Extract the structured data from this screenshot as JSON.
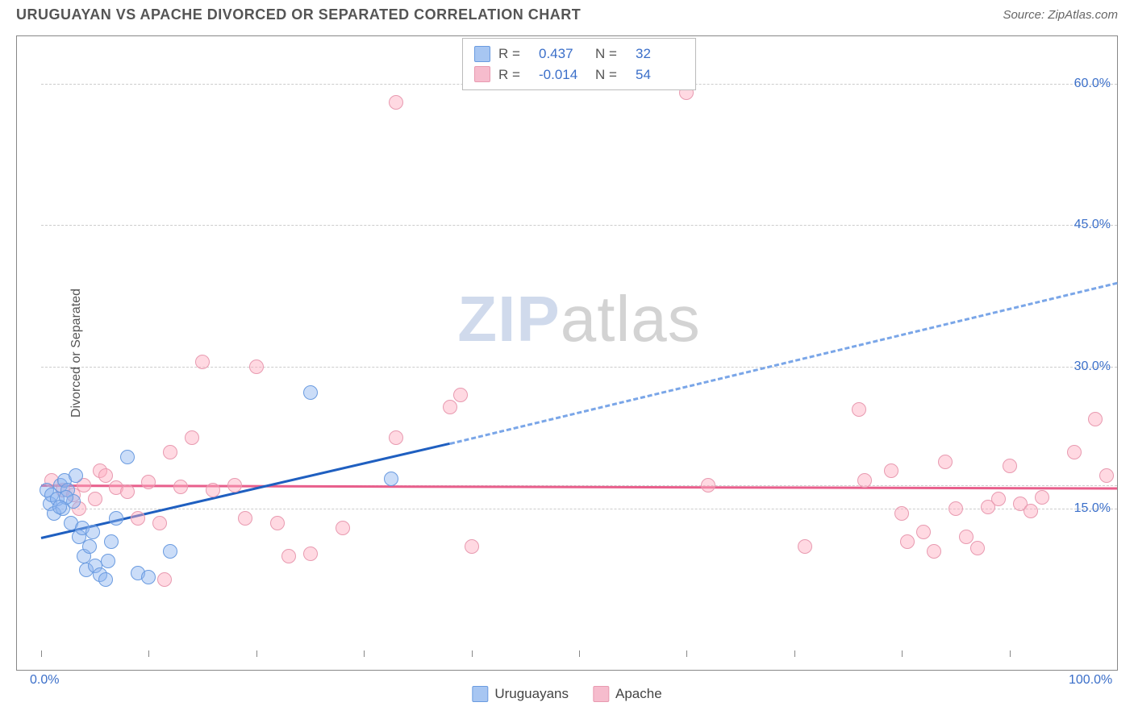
{
  "header": {
    "title": "URUGUAYAN VS APACHE DIVORCED OR SEPARATED CORRELATION CHART",
    "source": "Source: ZipAtlas.com"
  },
  "chart": {
    "type": "scatter",
    "ylabel": "Divorced or Separated",
    "xlim": [
      0,
      100
    ],
    "ylim": [
      0,
      65
    ],
    "x_ticks": [
      0,
      10,
      20,
      30,
      40,
      50,
      60,
      70,
      80,
      90,
      100
    ],
    "x_tick_labels": {
      "0": "0.0%",
      "100": "100.0%"
    },
    "y_gridlines": [
      15,
      30,
      45,
      60
    ],
    "y_gridline_extra": 17.5,
    "y_tick_labels": {
      "15": "15.0%",
      "30": "30.0%",
      "45": "45.0%",
      "60": "60.0%"
    },
    "background_color": "#ffffff",
    "grid_color": "#cccccc",
    "border_color": "#888888",
    "point_radius": 9,
    "point_opacity": 0.45,
    "series": [
      {
        "id": "uruguayans",
        "label": "Uruguayans",
        "fill_color": "#a7c6f2",
        "stroke_color": "#6a9be0",
        "trend_color_solid": "#1f5fc0",
        "trend_color_dash": "#7aa6e8",
        "R": "0.437",
        "N": "32",
        "trend": {
          "x1": 0,
          "y1": 12,
          "x2_solid": 38,
          "y2_solid": 22,
          "x2": 100,
          "y2": 39
        },
        "points": [
          [
            0.5,
            17
          ],
          [
            0.8,
            15.5
          ],
          [
            1,
            16.5
          ],
          [
            1.2,
            14.5
          ],
          [
            1.5,
            16
          ],
          [
            1.8,
            17.5
          ],
          [
            2,
            15
          ],
          [
            2.2,
            18
          ],
          [
            2.5,
            17
          ],
          [
            2.8,
            13.5
          ],
          [
            3,
            15.8
          ],
          [
            3.2,
            18.5
          ],
          [
            3.5,
            12
          ],
          [
            4,
            10
          ],
          [
            4.2,
            8.5
          ],
          [
            4.5,
            11
          ],
          [
            5,
            9
          ],
          [
            5.5,
            8
          ],
          [
            6,
            7.5
          ],
          [
            6.5,
            11.5
          ],
          [
            7,
            14
          ],
          [
            8,
            20.5
          ],
          [
            9,
            8.2
          ],
          [
            10,
            7.8
          ],
          [
            12,
            10.5
          ],
          [
            3.8,
            13
          ],
          [
            2.3,
            16.2
          ],
          [
            1.7,
            15.2
          ],
          [
            25,
            27.3
          ],
          [
            32.5,
            18.2
          ],
          [
            4.8,
            12.5
          ],
          [
            6.2,
            9.5
          ]
        ]
      },
      {
        "id": "apache",
        "label": "Apache",
        "fill_color": "#f6bccd",
        "stroke_color": "#e89ab0",
        "trend_color": "#e85f8c",
        "R": "-0.014",
        "N": "54",
        "trend": {
          "x1": 0,
          "y1": 17.6,
          "x2": 100,
          "y2": 17.3
        },
        "points": [
          [
            1,
            18
          ],
          [
            2,
            17
          ],
          [
            3,
            16.5
          ],
          [
            3.5,
            15
          ],
          [
            4,
            17.5
          ],
          [
            5,
            16
          ],
          [
            5.5,
            19
          ],
          [
            6,
            18.5
          ],
          [
            7,
            17.2
          ],
          [
            8,
            16.8
          ],
          [
            9,
            14
          ],
          [
            10,
            17.8
          ],
          [
            11,
            13.5
          ],
          [
            12,
            21
          ],
          [
            13,
            17.3
          ],
          [
            14,
            22.5
          ],
          [
            15,
            30.5
          ],
          [
            16,
            17
          ],
          [
            18,
            17.5
          ],
          [
            19,
            14
          ],
          [
            20,
            30
          ],
          [
            22,
            13.5
          ],
          [
            23,
            10
          ],
          [
            25,
            10.2
          ],
          [
            28,
            13
          ],
          [
            33,
            58
          ],
          [
            33,
            22.5
          ],
          [
            38,
            25.8
          ],
          [
            39,
            27
          ],
          [
            40,
            11
          ],
          [
            60,
            59
          ],
          [
            62,
            17.5
          ],
          [
            71,
            11
          ],
          [
            76,
            25.5
          ],
          [
            76.5,
            18
          ],
          [
            79,
            19
          ],
          [
            80,
            14.5
          ],
          [
            80.5,
            11.5
          ],
          [
            82,
            12.5
          ],
          [
            83,
            10.5
          ],
          [
            84,
            20
          ],
          [
            85,
            15
          ],
          [
            86,
            12
          ],
          [
            87,
            10.8
          ],
          [
            88,
            15.2
          ],
          [
            89,
            16
          ],
          [
            90,
            19.5
          ],
          [
            91,
            15.5
          ],
          [
            92,
            14.8
          ],
          [
            93,
            16.2
          ],
          [
            96,
            21
          ],
          [
            98,
            24.5
          ],
          [
            99,
            18.5
          ],
          [
            11.5,
            7.5
          ]
        ]
      }
    ],
    "legend_top": {
      "r_label": "R =",
      "n_label": "N ="
    },
    "watermark": {
      "part1": "ZIP",
      "part2": "atlas"
    }
  }
}
